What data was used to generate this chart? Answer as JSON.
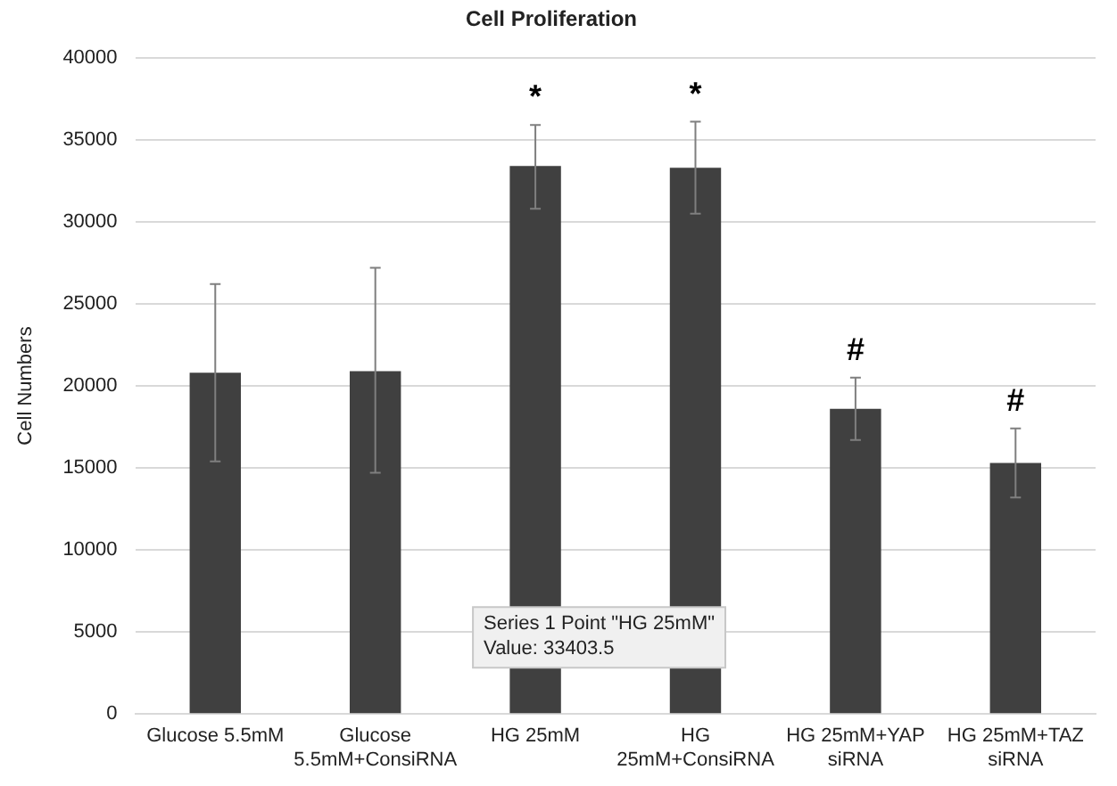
{
  "chart_data": {
    "type": "bar",
    "title": "Cell Proliferation",
    "ylabel": "Cell Numbers",
    "categories": [
      "Glucose 5.5mM",
      "Glucose 5.5mM+ConsiRNA",
      "HG 25mM",
      "HG 25mM+ConsiRNA",
      "HG 25mM+YAP siRNA",
      "HG 25mM+TAZ siRNA"
    ],
    "values": [
      20800,
      20900,
      33403.5,
      33300,
      18600,
      15300
    ],
    "errors": [
      [
        15400,
        26200
      ],
      [
        14700,
        27200
      ],
      [
        30800,
        35900
      ],
      [
        30500,
        36100
      ],
      [
        16700,
        20500
      ],
      [
        13200,
        17400
      ]
    ],
    "color": "#404040",
    "ylim": [
      0,
      40000
    ],
    "yticks": [
      0,
      5000,
      10000,
      15000,
      20000,
      25000,
      30000,
      35000,
      40000
    ],
    "grid": "y",
    "legend": false,
    "annotations": [
      {
        "text": "*",
        "x": "HG 25mM",
        "y": 35900
      },
      {
        "text": "*",
        "x": "HG 25mM+ConsiRNA",
        "y": 36100
      },
      {
        "text": "#",
        "x": "HG 25mM+YAP siRNA",
        "y": 20500
      },
      {
        "text": "#",
        "x": "HG 25mM+TAZ siRNA",
        "y": 17400
      },
      "Series 1 Point \"HG 25mM\"\nValue: 33403.5"
    ]
  }
}
